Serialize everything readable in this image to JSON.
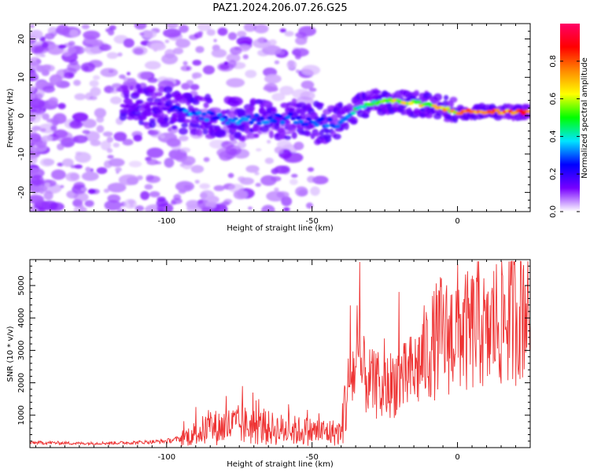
{
  "title": "PAZ1.2024.206.07.26.G25",
  "chart_data": [
    {
      "type": "heatmap",
      "xlabel": "Height of straight line (km)",
      "ylabel": "Frequency (Hz)",
      "xlim": [
        -147,
        25
      ],
      "ylim": [
        -25,
        24
      ],
      "x_ticks": [
        -100,
        -50,
        0
      ],
      "y_ticks": [
        -20,
        -10,
        0,
        10,
        20
      ],
      "colorbar": {
        "label": "Normalized spectral amplitude",
        "range": [
          0,
          1
        ],
        "ticks": [
          0.0,
          0.2,
          0.4,
          0.6,
          0.8
        ],
        "tick_labels": [
          "0.0",
          "0.2",
          "0.4",
          "0.6",
          "0.8"
        ],
        "colormap": [
          "#ffffff",
          "#7700ff",
          "#0000ff",
          "#00e5ff",
          "#00ff00",
          "#ffff00",
          "#ff8800",
          "#ff0000",
          "#ff0066"
        ]
      },
      "ridge": [
        {
          "x": -115,
          "freq": 3,
          "amp": 0.12
        },
        {
          "x": -108,
          "freq": 2.5,
          "amp": 0.12
        },
        {
          "x": -100,
          "freq": 2,
          "amp": 0.15
        },
        {
          "x": -94,
          "freq": 0.5,
          "amp": 0.35
        },
        {
          "x": -85,
          "freq": 0,
          "amp": 0.3
        },
        {
          "x": -78,
          "freq": -1,
          "amp": 0.32
        },
        {
          "x": -70,
          "freq": -1,
          "amp": 0.3
        },
        {
          "x": -62,
          "freq": -0.5,
          "amp": 0.3
        },
        {
          "x": -55,
          "freq": -1,
          "amp": 0.28
        },
        {
          "x": -48,
          "freq": -2,
          "amp": 0.3
        },
        {
          "x": -42,
          "freq": -2,
          "amp": 0.35
        },
        {
          "x": -38,
          "freq": -1,
          "amp": 0.38
        },
        {
          "x": -35,
          "freq": 2,
          "amp": 0.45
        },
        {
          "x": -30,
          "freq": 3,
          "amp": 0.5
        },
        {
          "x": -25,
          "freq": 4,
          "amp": 0.6
        },
        {
          "x": -18,
          "freq": 3.5,
          "amp": 0.62
        },
        {
          "x": -12,
          "freq": 3,
          "amp": 0.65
        },
        {
          "x": -6,
          "freq": 2,
          "amp": 0.7
        },
        {
          "x": 0,
          "freq": 1,
          "amp": 0.72
        },
        {
          "x": 5,
          "freq": 1,
          "amp": 0.78
        },
        {
          "x": 10,
          "freq": 1,
          "amp": 0.8
        },
        {
          "x": 15,
          "freq": 1,
          "amp": 0.82
        },
        {
          "x": 20,
          "freq": 1,
          "amp": 0.85
        },
        {
          "x": 25,
          "freq": 1,
          "amp": 0.85
        }
      ]
    },
    {
      "type": "line",
      "xlabel": "Height of straight line (km)",
      "ylabel": "SNR (10 * v/v)",
      "xlim": [
        -147,
        25
      ],
      "ylim": [
        0,
        5800
      ],
      "x_ticks": [
        -100,
        -50,
        0
      ],
      "y_ticks": [
        1000,
        2000,
        3000,
        4000,
        5000
      ],
      "series": [
        {
          "color": "#ee3333",
          "x": [
            -147,
            -140,
            -130,
            -120,
            -110,
            -100,
            -95,
            -90,
            -85,
            -80,
            -75,
            -70,
            -65,
            -60,
            -55,
            -50,
            -45,
            -40,
            -38,
            -36,
            -34,
            -32,
            -30,
            -28,
            -26,
            -24,
            -22,
            -20,
            -18,
            -16,
            -14,
            -12,
            -10,
            -8,
            -6,
            -4,
            -2,
            0,
            2,
            4,
            6,
            8,
            10,
            12,
            14,
            16,
            18,
            20,
            22,
            24,
            25
          ],
          "y": [
            150,
            150,
            130,
            140,
            160,
            200,
            280,
            450,
            600,
            650,
            700,
            650,
            600,
            550,
            520,
            500,
            480,
            450,
            1800,
            2300,
            2500,
            2200,
            2000,
            1900,
            1600,
            1900,
            2000,
            2200,
            2100,
            2300,
            2400,
            2800,
            3000,
            3200,
            3500,
            3400,
            3500,
            3700,
            3600,
            3500,
            3700,
            4000,
            3200,
            3800,
            3900,
            4000,
            4100,
            4200,
            4400,
            4600,
            4500
          ]
        }
      ]
    }
  ]
}
